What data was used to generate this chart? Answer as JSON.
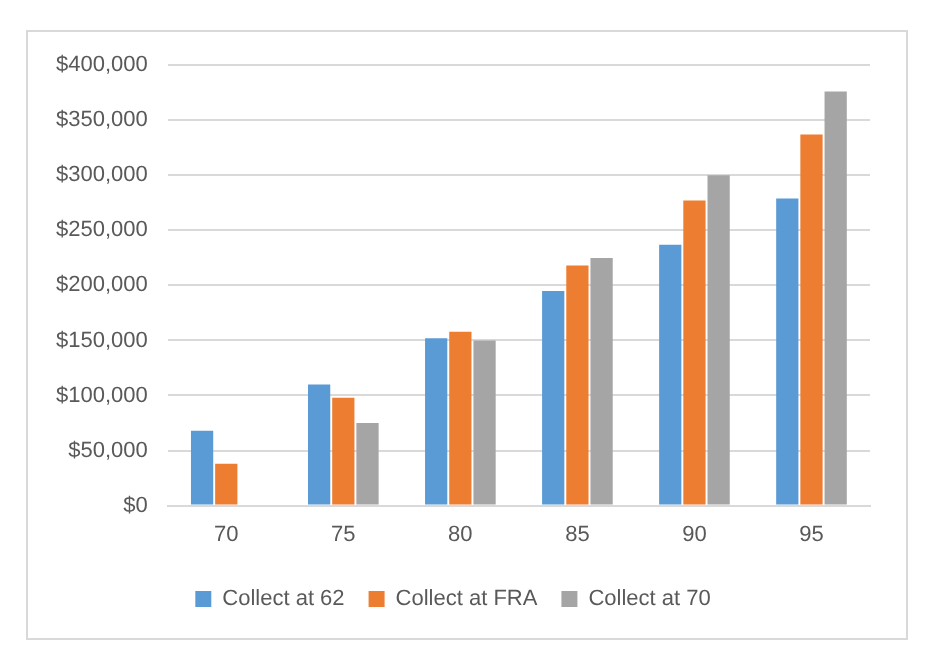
{
  "chart_data": {
    "type": "bar",
    "categories": [
      "70",
      "75",
      "80",
      "85",
      "90",
      "95"
    ],
    "series": [
      {
        "name": "Collect at 62",
        "color": "#5b9bd5",
        "values": [
          68000,
          110000,
          152000,
          195000,
          237000,
          279000
        ]
      },
      {
        "name": "Collect at FRA",
        "color": "#ed7d31",
        "values": [
          38000,
          98000,
          158000,
          218000,
          277000,
          337000
        ]
      },
      {
        "name": "Collect at 70",
        "color": "#a5a5a5",
        "values": [
          null,
          75000,
          150000,
          225000,
          300000,
          376000
        ]
      }
    ],
    "ylim": [
      0,
      400000
    ],
    "yticks": [
      {
        "value": 0,
        "label": "$0"
      },
      {
        "value": 50000,
        "label": "$50,000"
      },
      {
        "value": 100000,
        "label": "$100,000"
      },
      {
        "value": 150000,
        "label": "$150,000"
      },
      {
        "value": 200000,
        "label": "$200,000"
      },
      {
        "value": 250000,
        "label": "$250,000"
      },
      {
        "value": 300000,
        "label": "$300,000"
      },
      {
        "value": 350000,
        "label": "$350,000"
      },
      {
        "value": 400000,
        "label": "$400,000"
      }
    ],
    "grid": "y",
    "legend": "bottom"
  }
}
